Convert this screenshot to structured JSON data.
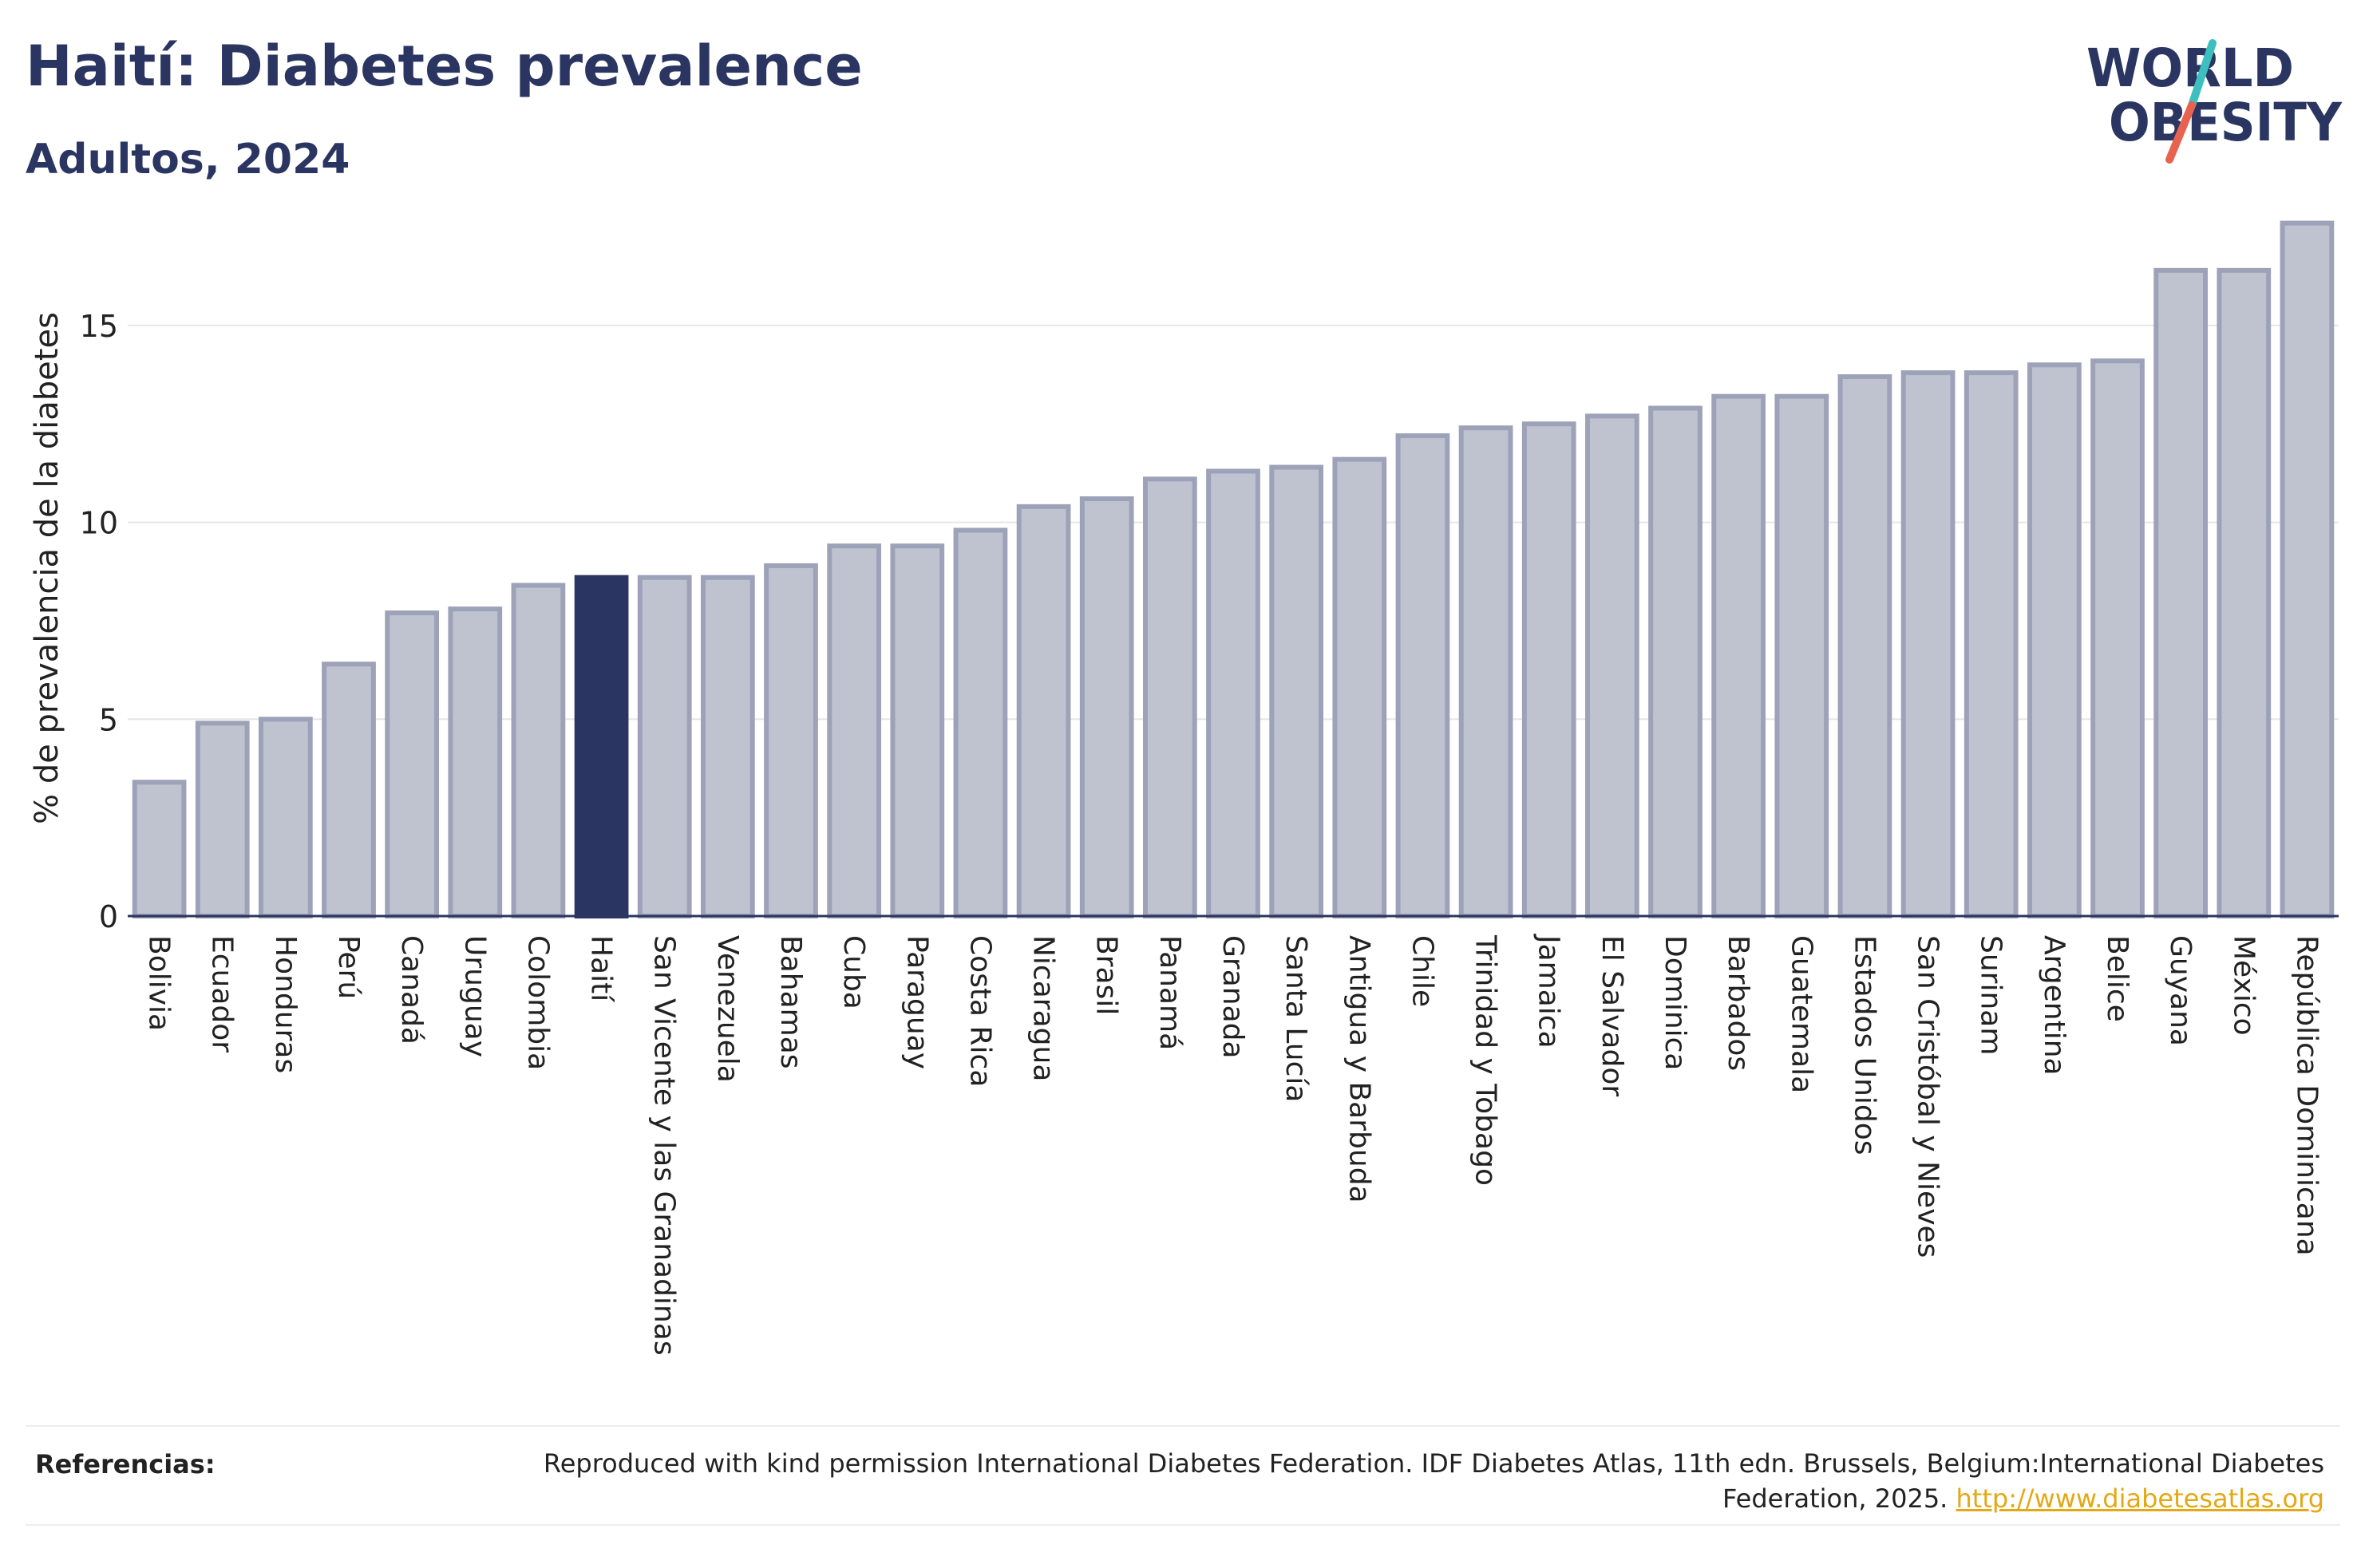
{
  "header": {
    "title": "Haití: Diabetes prevalence",
    "subtitle": "Adultos, 2024"
  },
  "logo": {
    "line1": "WORLD",
    "line2": "OBESITY",
    "colors": {
      "text": "#2b3561",
      "slash_top": "#3ebfbf",
      "slash_bottom": "#e8634f"
    }
  },
  "chart_data": {
    "type": "bar",
    "ylabel": "% de prevalencia de la diabetes",
    "xlabel": "",
    "ylim": [
      0,
      18.2
    ],
    "yticks": [
      0,
      5,
      10,
      15
    ],
    "grid": true,
    "highlight": "Haití",
    "colors": {
      "bar": "#bfc2cf",
      "bar_stroke": "#9da2b8",
      "highlight": "#2b3561"
    },
    "categories": [
      "Bolivia",
      "Ecuador",
      "Honduras",
      "Perú",
      "Canadá",
      "Uruguay",
      "Colombia",
      "Haití",
      "San Vicente y las Granadinas",
      "Venezuela",
      "Bahamas",
      "Cuba",
      "Paraguay",
      "Costa Rica",
      "Nicaragua",
      "Brasil",
      "Panamá",
      "Granada",
      "Santa Lucía",
      "Antigua y Barbuda",
      "Chile",
      "Trinidad y Tobago",
      "Jamaica",
      "El Salvador",
      "Dominica",
      "Barbados",
      "Guatemala",
      "Estados Unidos",
      "San Cristóbal y Nieves",
      "Surinam",
      "Argentina",
      "Belice",
      "Guyana",
      "México",
      "República Dominicana"
    ],
    "values": [
      3.4,
      4.9,
      5.0,
      6.4,
      7.7,
      7.8,
      8.4,
      8.6,
      8.6,
      8.6,
      8.9,
      9.4,
      9.4,
      9.8,
      10.4,
      10.6,
      11.1,
      11.3,
      11.4,
      11.6,
      12.2,
      12.4,
      12.5,
      12.7,
      12.9,
      13.2,
      13.2,
      13.7,
      13.8,
      13.8,
      14.0,
      14.1,
      16.4,
      16.4,
      17.6
    ]
  },
  "footer": {
    "label": "Referencias:",
    "text": "Reproduced with kind permission International Diabetes Federation. IDF Diabetes Atlas, 11th edn. Brussels, Belgium:International Diabetes Federation, 2025.",
    "link": "http://www.diabetesatlas.org"
  }
}
